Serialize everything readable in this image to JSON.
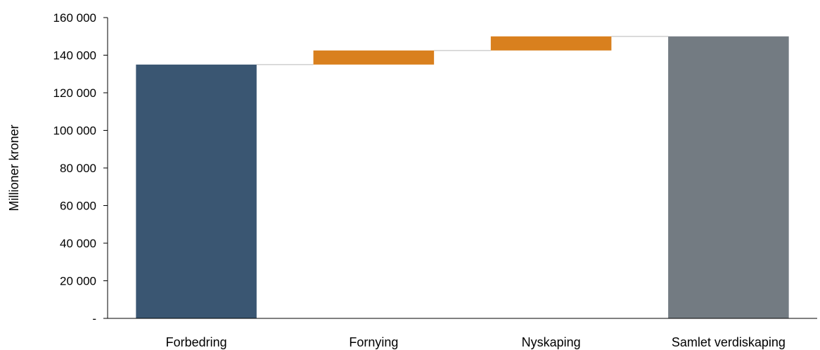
{
  "chart_data": {
    "type": "bar",
    "subtype": "waterfall",
    "title": "",
    "xlabel": "",
    "ylabel": "Millioner kroner",
    "ylim": [
      0,
      160000
    ],
    "grid": false,
    "legend": "none",
    "y_ticks": [
      0,
      20000,
      40000,
      60000,
      80000,
      100000,
      120000,
      140000,
      160000
    ],
    "y_tick_labels": [
      "-",
      "20 000",
      "40 000",
      "60 000",
      "80 000",
      "100 000",
      "120 000",
      "140 000",
      "160 000"
    ],
    "categories": [
      "Forbedring",
      "Fornying",
      "Nyskaping",
      "Samlet verdiskaping"
    ],
    "bars": [
      {
        "label": "Forbedring",
        "base": 0,
        "value": 135000,
        "kind": "total",
        "color": "#3a5672"
      },
      {
        "label": "Fornying",
        "base": 135000,
        "value": 7500,
        "kind": "increase",
        "color": "#d9801e"
      },
      {
        "label": "Nyskaping",
        "base": 142500,
        "value": 7500,
        "kind": "increase",
        "color": "#d9801e"
      },
      {
        "label": "Samlet verdiskaping",
        "base": 0,
        "value": 150000,
        "kind": "total",
        "color": "#737b82"
      }
    ],
    "connector_color": "#cfcfcf",
    "axis_color": "#000000"
  }
}
